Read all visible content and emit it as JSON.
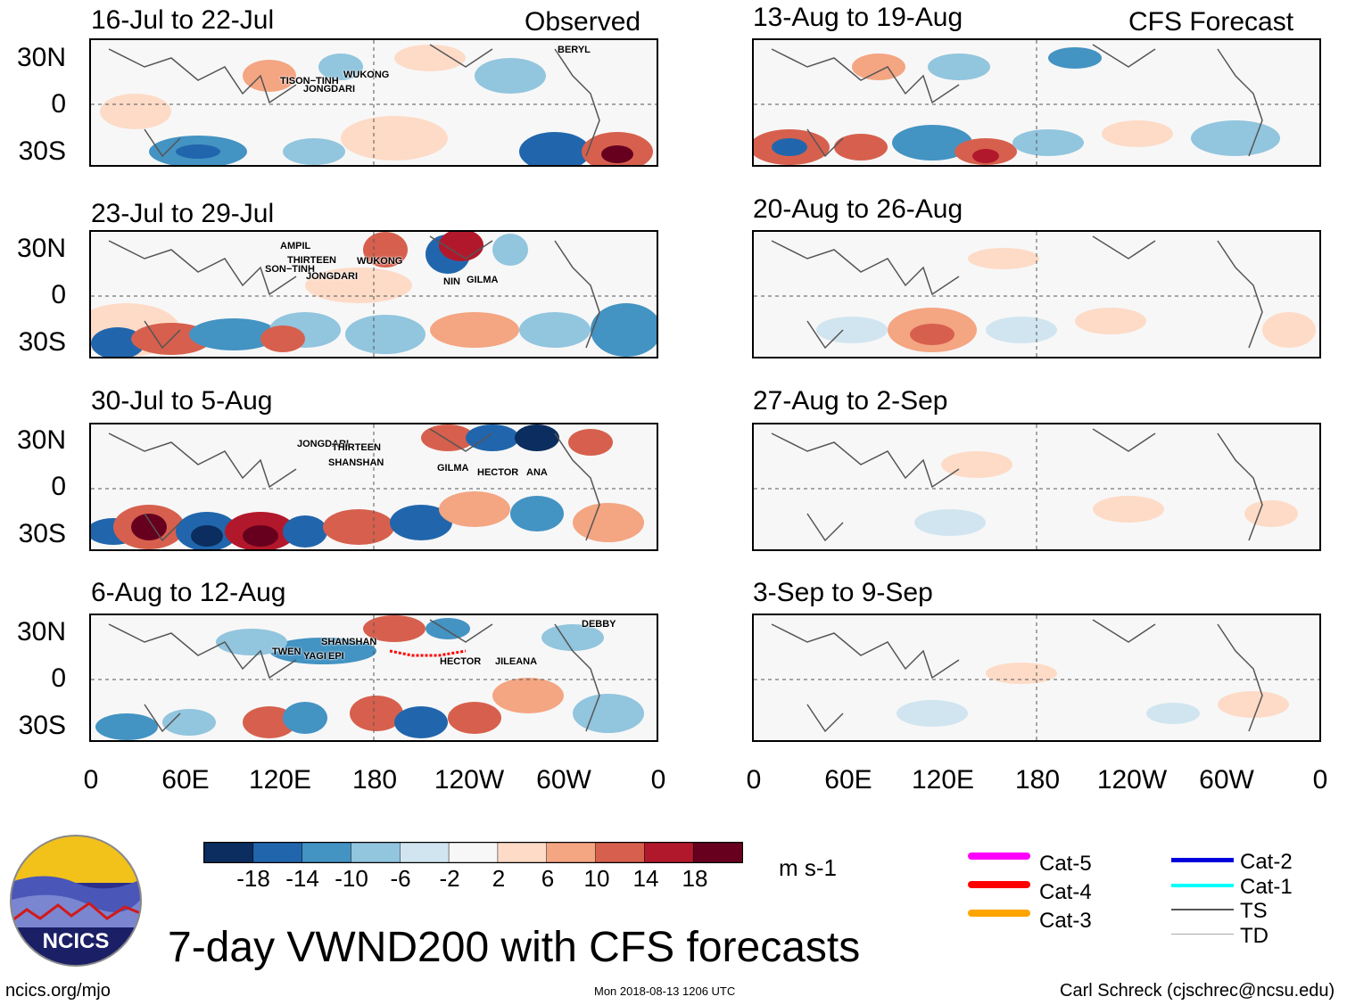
{
  "observed_label": "Observed",
  "forecast_label": "CFS Forecast",
  "observed_panels": [
    {
      "title": "16-Jul to 22-Jul",
      "storms": [
        "BERYL",
        "WUKONG",
        "TISON−TINH",
        "JONGDARI"
      ]
    },
    {
      "title": "23-Jul to 29-Jul",
      "storms": [
        "AMPIL",
        "THIRTEEN",
        "WUKONG",
        "SON−TINH",
        "JONGDARI",
        "NIN",
        "GILMA"
      ]
    },
    {
      "title": "30-Jul to 5-Aug",
      "storms": [
        "JONGDARI",
        "THIRTEEN",
        "SHANSHAN",
        "GILMA",
        "HECTOR",
        "ANA"
      ]
    },
    {
      "title": "6-Aug to 12-Aug",
      "storms": [
        "DEBBY",
        "SHANSHAN",
        "TWEN",
        "YAGI",
        "EPI",
        "HECTOR",
        "JILEANA"
      ]
    }
  ],
  "forecast_panels": [
    {
      "title": "13-Aug to 19-Aug"
    },
    {
      "title": "20-Aug to 26-Aug"
    },
    {
      "title": "27-Aug to 2-Sep"
    },
    {
      "title": "3-Sep to 9-Sep"
    }
  ],
  "lat_labels": [
    "30N",
    "0",
    "30S"
  ],
  "lon_labels": [
    "0",
    "60E",
    "120E",
    "180",
    "120W",
    "60W",
    "0"
  ],
  "colorbar": {
    "colors": [
      "#0b2d5f",
      "#2166ac",
      "#4393c3",
      "#92c5de",
      "#d1e5f0",
      "#f7f7f7",
      "#fddbc7",
      "#f4a582",
      "#d6604d",
      "#b2182b",
      "#67001f"
    ],
    "ticks": [
      "-18",
      "-14",
      "-10",
      "-6",
      "-2",
      "2",
      "6",
      "10",
      "14",
      "18"
    ],
    "units": "m s-1"
  },
  "legend": [
    {
      "label": "Cat-5",
      "color": "#ff00ff"
    },
    {
      "label": "Cat-4",
      "color": "#ff0000"
    },
    {
      "label": "Cat-3",
      "color": "#ffa500"
    },
    {
      "label": "Cat-2",
      "color": "#0000dd"
    },
    {
      "label": "Cat-1",
      "color": "#00ffff"
    },
    {
      "label": "TS",
      "color": "#555555"
    },
    {
      "label": "TD",
      "color": "#aaaaaa"
    }
  ],
  "logo_text": "NCICS",
  "main_title": "7-day VWND200 with CFS forecasts",
  "footer": {
    "left": "ncics.org/mjo",
    "center": "Mon 2018-08-13 1206 UTC",
    "right": "Carl Schreck (cjschrec@ncsu.edu)"
  }
}
